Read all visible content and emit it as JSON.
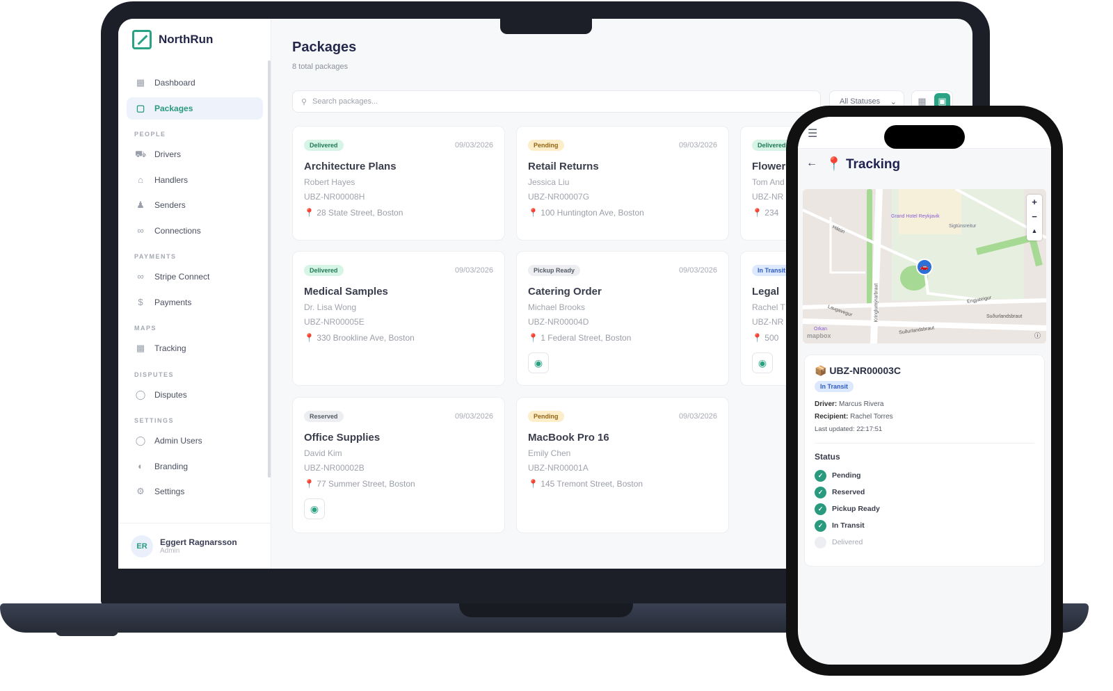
{
  "app": {
    "name": "NorthRun"
  },
  "sidebar": {
    "items": [
      {
        "label": "Dashboard",
        "icon": "grid-icon"
      },
      {
        "label": "Packages",
        "icon": "box-icon",
        "active": true
      },
      {
        "section": "PEOPLE"
      },
      {
        "label": "Drivers",
        "icon": "truck-icon"
      },
      {
        "label": "Handlers",
        "icon": "home-icon"
      },
      {
        "label": "Senders",
        "icon": "users-icon"
      },
      {
        "label": "Connections",
        "icon": "link-icon"
      },
      {
        "section": "PAYMENTS"
      },
      {
        "label": "Stripe Connect",
        "icon": "link-icon"
      },
      {
        "label": "Payments",
        "icon": "dollar-icon"
      },
      {
        "section": "MAPS"
      },
      {
        "label": "Tracking",
        "icon": "grid-icon"
      },
      {
        "section": "DISPUTES"
      },
      {
        "label": "Disputes",
        "icon": "shield-icon"
      },
      {
        "section": "SETTINGS"
      },
      {
        "label": "Admin Users",
        "icon": "shield-icon"
      },
      {
        "label": "Branding",
        "icon": "palette-icon"
      },
      {
        "label": "Settings",
        "icon": "gear-icon"
      }
    ],
    "user": {
      "initials": "ER",
      "name": "Eggert Ragnarsson",
      "role": "Admin"
    }
  },
  "main": {
    "title": "Packages",
    "subtitle": "8 total packages",
    "search_placeholder": "Search packages...",
    "status_filter": "All Statuses",
    "packages": [
      {
        "status": "Delivered",
        "date": "09/03/2026",
        "title": "Architecture Plans",
        "person": "Robert Hayes",
        "id": "UBZ-NR00008H",
        "address": "28 State Street, Boston"
      },
      {
        "status": "Pending",
        "date": "09/03/2026",
        "title": "Retail Returns",
        "person": "Jessica Liu",
        "id": "UBZ-NR00007G",
        "address": "100 Huntington Ave, Boston"
      },
      {
        "status": "Delivered",
        "title": "Flower",
        "person": "Tom And",
        "id": "UBZ-NR",
        "address": "234"
      },
      {
        "status": "Delivered",
        "date": "09/03/2026",
        "title": "Medical Samples",
        "person": "Dr. Lisa Wong",
        "id": "UBZ-NR00005E",
        "address": "330 Brookline Ave, Boston"
      },
      {
        "status": "Pickup Ready",
        "date": "09/03/2026",
        "title": "Catering Order",
        "person": "Michael Brooks",
        "id": "UBZ-NR00004D",
        "address": "1 Federal Street, Boston"
      },
      {
        "status": "In Transit",
        "title": "Legal",
        "person": "Rachel T",
        "id": "UBZ-NR",
        "address": "500"
      },
      {
        "status": "Reserved",
        "date": "09/03/2026",
        "title": "Office Supplies",
        "person": "David Kim",
        "id": "UBZ-NR00002B",
        "address": "77 Summer Street, Boston"
      },
      {
        "status": "Pending",
        "date": "09/03/2026",
        "title": "MacBook Pro 16",
        "person": "Emily Chen",
        "id": "UBZ-NR00001A",
        "address": "145 Tremont Street, Boston"
      }
    ]
  },
  "phone": {
    "title": "Tracking",
    "map_labels": {
      "hotel": "Grand Hotel Reykjavik",
      "area": "Sigtúnsreitur",
      "st1": "Hátún",
      "st2": "Kringlumýrarbraut",
      "st3": "Laugavegur",
      "st4": "Engjateigur",
      "st5": "Suðurlandsbraut",
      "poi": "Orkan",
      "attribution": "mapbox"
    },
    "package_id": "UBZ-NR00003C",
    "status": "In Transit",
    "driver_label": "Driver:",
    "driver": "Marcus Rivera",
    "recipient_label": "Recipient:",
    "recipient": "Rachel Torres",
    "last_updated": "Last updated: 22:17:51",
    "status_heading": "Status",
    "steps": [
      {
        "label": "Pending",
        "done": true
      },
      {
        "label": "Reserved",
        "done": true
      },
      {
        "label": "Pickup Ready",
        "done": true
      },
      {
        "label": "In Transit",
        "done": true
      },
      {
        "label": "Delivered",
        "done": false
      }
    ]
  },
  "colors": {
    "accent": "#2aa284",
    "title": "#25284a"
  }
}
